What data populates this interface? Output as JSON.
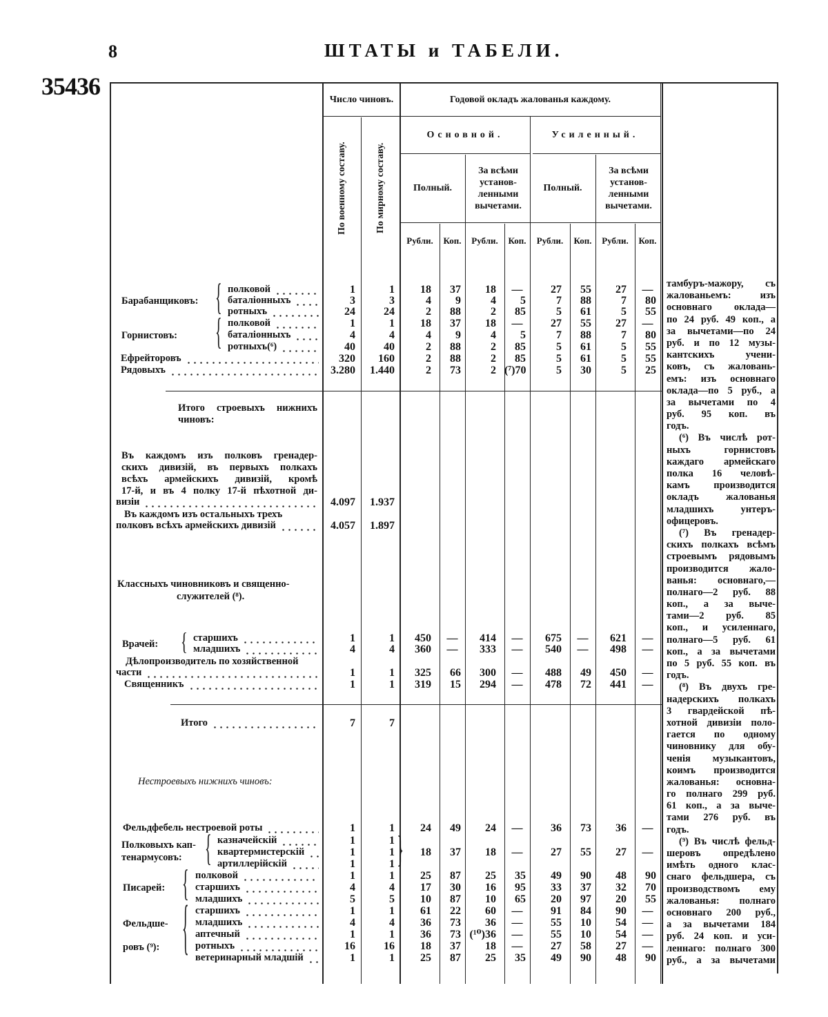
{
  "page": {
    "number": "8",
    "title": "ШТАТЫ и ТАБЕЛИ.",
    "document_number": "35436"
  },
  "header": {
    "count": "Число чиновъ.",
    "count_war": "По военному составу.",
    "count_peace": "По мирному составу.",
    "salary": "Годовой окладъ жалованья каждому.",
    "basic": "Основной.",
    "increased": "Усиленный.",
    "full": "Полный.",
    "net": "За всѣми установ-ленными вычетами.",
    "rub": "Рубли.",
    "kop": "Коп."
  },
  "groups": {
    "drummers": "Барабанщиковъ:",
    "buglers": "Горнистовъ:",
    "combat_total": "Итого строевыхъ нижнихъ чиновъ:",
    "para1": [
      "Въ каждомъ изъ полковъ гренадер-",
      "скихъ дивизій, въ первыхъ полкахъ",
      "всѣхъ армейскихъ дивизій, кромѣ",
      "17-й, и въ 4 полку 17-й пѣхотной ди-"
    ],
    "para2": [
      "Въ каждомъ изъ остальныхъ трехъ"
    ],
    "officials": "Классныхъ чиновниковъ и священно-",
    "officials2": "служителей (⁸).",
    "doctors": "Врачей:",
    "clerk": "Дѣлопроизводитель по хозяйственной",
    "noncombat": "Нестроевыхъ нижнихъ чиновъ:",
    "quartermasters": "Полковыхъ кап-",
    "quartermasters2": "тенармусовъ:",
    "scribes": "Писарей:",
    "medics": "Фельдше-",
    "medics2": "ровъ (⁹):"
  },
  "rows": [
    {
      "label": "полковой",
      "values": [
        "1",
        "1",
        "18",
        "37",
        "18",
        "—",
        "27",
        "55",
        "27",
        "—"
      ]
    },
    {
      "label": "баталіонныхъ",
      "values": [
        "3",
        "3",
        "4",
        "9",
        "4",
        "5",
        "7",
        "88",
        "7",
        "80"
      ]
    },
    {
      "label": "ротныхъ",
      "values": [
        "24",
        "24",
        "2",
        "88",
        "2",
        "85",
        "5",
        "61",
        "5",
        "55"
      ]
    },
    {
      "label": "полковой",
      "values": [
        "1",
        "1",
        "18",
        "37",
        "18",
        "—",
        "27",
        "55",
        "27",
        "—"
      ]
    },
    {
      "label": "баталіонныхъ",
      "values": [
        "4",
        "4",
        "4",
        "9",
        "4",
        "5",
        "7",
        "88",
        "7",
        "80"
      ]
    },
    {
      "label": "ротныхъ(⁶)",
      "values": [
        "40",
        "40",
        "2",
        "88",
        "2",
        "85",
        "5",
        "61",
        "5",
        "55"
      ]
    },
    {
      "label": "Ефрейторовъ",
      "values": [
        "320",
        "160",
        "2",
        "88",
        "2",
        "85",
        "5",
        "61",
        "5",
        "55"
      ]
    },
    {
      "label": "Рядовыхъ",
      "values": [
        "3.280",
        "1.440",
        "2",
        "73",
        "2",
        "(⁷)70",
        "5",
        "30",
        "5",
        "25"
      ]
    },
    {
      "label": "визіи",
      "values": [
        "4.097",
        "1.937",
        "",
        "",
        "",
        "",
        "",
        "",
        "",
        ""
      ]
    },
    {
      "label": "полковъ всѣхъ армейскихъ дивизій",
      "values": [
        "4.057",
        "1.897",
        "",
        "",
        "",
        "",
        "",
        "",
        "",
        ""
      ]
    },
    {
      "label": "старшихъ",
      "values": [
        "1",
        "1",
        "450",
        "—",
        "414",
        "—",
        "675",
        "—",
        "621",
        "—"
      ]
    },
    {
      "label": "младшихъ",
      "values": [
        "4",
        "4",
        "360",
        "—",
        "333",
        "—",
        "540",
        "—",
        "498",
        "—"
      ]
    },
    {
      "label": "части",
      "values": [
        "1",
        "1",
        "325",
        "66",
        "300",
        "—",
        "488",
        "49",
        "450",
        "—"
      ]
    },
    {
      "label": "Священникъ",
      "values": [
        "1",
        "1",
        "319",
        "15",
        "294",
        "—",
        "478",
        "72",
        "441",
        "—"
      ]
    },
    {
      "label": "Итого",
      "values": [
        "7",
        "7",
        "",
        "",
        "",
        "",
        "",
        "",
        "",
        ""
      ]
    },
    {
      "label": "Фельдфебель нестроевой роты",
      "values": [
        "1",
        "1",
        "24",
        "49",
        "24",
        "—",
        "36",
        "73",
        "36",
        "—"
      ]
    },
    {
      "label": "казначейскій",
      "values": [
        "1",
        "1",
        "",
        "",
        "",
        "",
        "",
        "",
        "",
        ""
      ]
    },
    {
      "label": "квартермистерскій",
      "values": [
        "1",
        "1",
        "18",
        "37",
        "18",
        "—",
        "27",
        "55",
        "27",
        "—"
      ]
    },
    {
      "label": "артиллерійскій",
      "values": [
        "1",
        "1",
        "",
        "",
        "",
        "",
        "",
        "",
        "",
        ""
      ]
    },
    {
      "label": "полковой",
      "values": [
        "1",
        "1",
        "25",
        "87",
        "25",
        "35",
        "49",
        "90",
        "48",
        "90"
      ]
    },
    {
      "label": "старшихъ",
      "values": [
        "4",
        "4",
        "17",
        "30",
        "16",
        "95",
        "33",
        "37",
        "32",
        "70"
      ]
    },
    {
      "label": "младшихъ",
      "values": [
        "5",
        "5",
        "10",
        "87",
        "10",
        "65",
        "20",
        "97",
        "20",
        "55"
      ]
    },
    {
      "label": "старшихъ",
      "values": [
        "1",
        "1",
        "61",
        "22",
        "60",
        "—",
        "91",
        "84",
        "90",
        "—"
      ]
    },
    {
      "label": "младшихъ",
      "values": [
        "4",
        "4",
        "36",
        "73",
        "36",
        "—",
        "55",
        "10",
        "54",
        "—"
      ]
    },
    {
      "label": "аптечный",
      "values": [
        "1",
        "1",
        "36",
        "73",
        "(¹⁰)36",
        "—",
        "55",
        "10",
        "54",
        "—"
      ]
    },
    {
      "label": "ротныхъ",
      "values": [
        "16",
        "16",
        "18",
        "37",
        "18",
        "—",
        "27",
        "58",
        "27",
        "—"
      ]
    },
    {
      "label": "ветеринарный младшій",
      "values": [
        "1",
        "1",
        "25",
        "87",
        "25",
        "35",
        "49",
        "90",
        "48",
        "90"
      ]
    }
  ],
  "footnotes": [
    "тамбуръ-мажору, съ",
    "жалованьемъ: изъ",
    "основнаго оклада—",
    "по 24 руб. 49 коп., а",
    "за вычетами—по 24",
    "руб. и по 12 музы-",
    "кантскихъ учени-",
    "ковъ, съ жаловань-",
    "емъ: изъ основнаго",
    "оклада—по 5 руб., а",
    "за вычетами по 4",
    "руб. 95 коп. въ",
    "годъ.",
    "(⁶) Въ числѣ рот-",
    "ныхъ горнистовъ",
    "каждаго армейскаго",
    "полка 16 человѣ-",
    "камъ производится",
    "окладъ жалованья",
    "младшихъ унтеръ-",
    "офицеровъ.",
    "(⁷) Въ гренадер-",
    "скихъ полкахъ всѣмъ",
    "строевымъ рядовымъ",
    "производится жало-",
    "ванья: основнаго,—",
    "полнаго—2 руб. 88",
    "коп., а за выче-",
    "тами—2 руб. 85",
    "коп., и усиленнаго,",
    "полнаго—5 руб. 61",
    "коп., а за вычетами",
    "по 5 руб. 55 коп. въ",
    "годъ.",
    "(⁸) Въ двухъ гре-",
    "надерскихъ полкахъ",
    "3 гвардейской пѣ-",
    "хотной дивизіи поло-",
    "гается по одному",
    "чиновнику для обу-",
    "ченія музыкантовъ,",
    "коимъ производится",
    "жалованья: основна-",
    "го полнаго 299 руб.",
    "61 коп., а за выче-",
    "тами 276 руб. въ",
    "годъ.",
    "(⁹) Въ числѣ фельд-",
    "шеровъ опредѣлено",
    "имѣть одного клас-",
    "снаго фельдшера, съ",
    "производствомъ ему",
    "жалованья: полнаго",
    "основнаго 200 руб.,",
    "а за вычетами 184",
    "руб. 24 коп. и уси-",
    "леннаго: полнаго 300",
    "руб., а за вычетами"
  ]
}
